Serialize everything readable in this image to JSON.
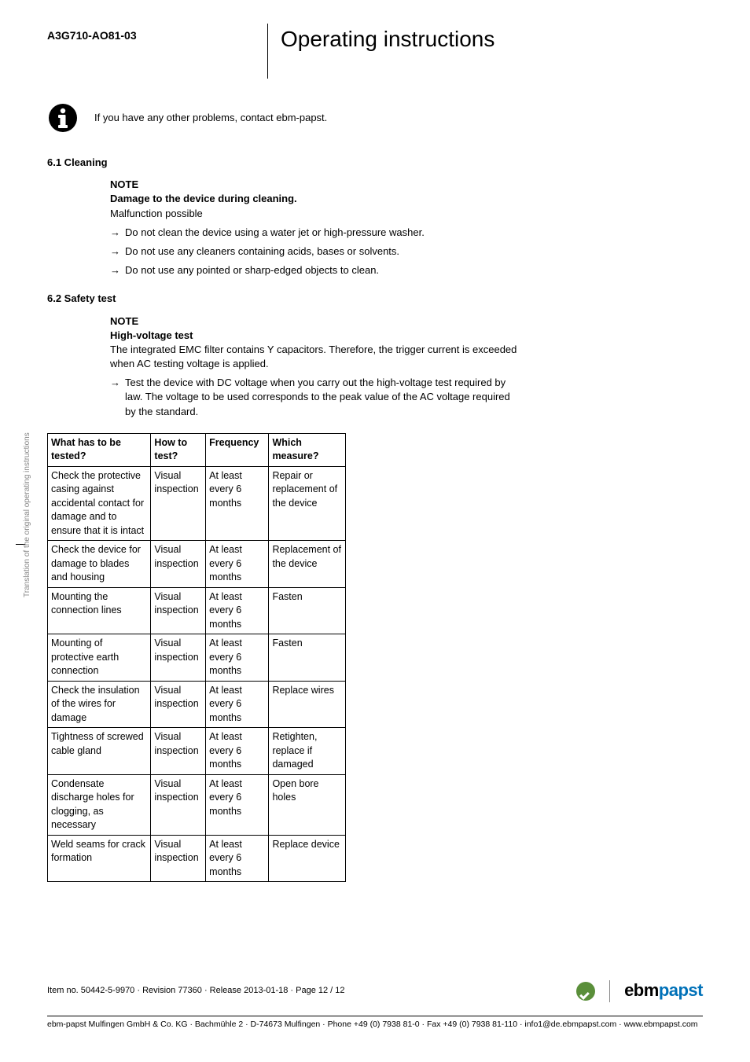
{
  "header": {
    "product_code": "A3G710-AO81-03",
    "title": "Operating instructions"
  },
  "side_text": "Translation of the original operating instructions",
  "info_note": "If you have any other problems, contact ebm-papst.",
  "section_cleaning": {
    "heading": "6.1 Cleaning",
    "note_label": "NOTE",
    "note_title": "Damage to the device during cleaning.",
    "note_body": "Malfunction possible",
    "bullets": [
      "Do not clean the device using a water jet or high-pressure washer.",
      "Do not use any cleaners containing acids, bases or solvents.",
      "Do not use any pointed or sharp-edged objects to clean."
    ]
  },
  "section_safety": {
    "heading": "6.2 Safety test",
    "note_label": "NOTE",
    "note_title": "High-voltage test",
    "note_body": "The integrated EMC filter contains Y capacitors. Therefore, the trigger current is exceeded when AC testing voltage is applied.",
    "bullets": [
      "Test the device with DC voltage when you carry out the high-voltage test required by law. The voltage to be used corresponds to the peak value of the AC voltage required by the standard."
    ]
  },
  "table": {
    "columns": [
      "What has to be tested?",
      "How to test?",
      "Frequency",
      "Which measure?"
    ],
    "rows": [
      [
        "Check the protective casing against accidental contact for damage and to ensure that it is intact",
        "Visual inspection",
        "At least every 6 months",
        "Repair or replacement of the device"
      ],
      [
        "Check the device for damage to blades and housing",
        "Visual inspection",
        "At least every 6 months",
        "Replacement of the device"
      ],
      [
        "Mounting the connection lines",
        "Visual inspection",
        "At least every 6 months",
        "Fasten"
      ],
      [
        "Mounting of protective earth connection",
        "Visual inspection",
        "At least every 6 months",
        "Fasten"
      ],
      [
        "Check the insulation of the wires for damage",
        "Visual inspection",
        "At least every 6 months",
        "Replace wires"
      ],
      [
        "Tightness of screwed cable gland",
        "Visual inspection",
        "At least every 6 months",
        "Retighten, replace if damaged"
      ],
      [
        "Condensate discharge holes for clogging, as necessary",
        "Visual inspection",
        "At least every 6 months",
        "Open bore holes"
      ],
      [
        "Weld seams for crack formation",
        "Visual inspection",
        "At least every 6 months",
        "Replace device"
      ]
    ]
  },
  "footer_top": "Item no. 50442-5-9970 · Revision 77360 · Release 2013-01-18 · Page 12 / 12",
  "footer_bottom": "ebm-papst Mulfingen GmbH & Co. KG · Bachmühle 2 · D-74673 Mulfingen · Phone +49 (0) 7938 81-0 · Fax +49 (0) 7938 81-110 · info1@de.ebmpapst.com · www.ebmpapst.com",
  "logo": {
    "part1": "ebm",
    "part2": "papst"
  },
  "colors": {
    "brand_blue": "#0071b8",
    "badge_green": "#5a8f3a"
  }
}
